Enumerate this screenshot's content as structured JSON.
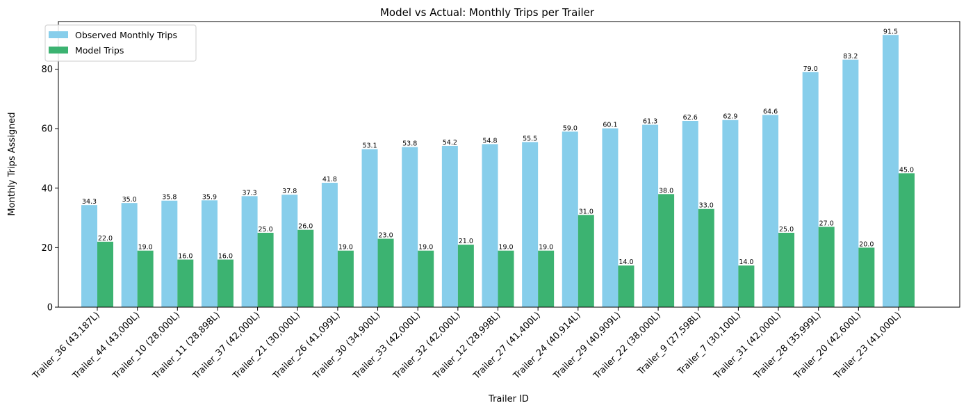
{
  "chart_data": {
    "type": "bar",
    "title": "Model vs Actual: Monthly Trips per Trailer",
    "xlabel": "Trailer ID",
    "ylabel": "Monthly Trips Assigned",
    "ylim": [
      0,
      96
    ],
    "yticks": [
      0,
      20,
      40,
      60,
      80
    ],
    "grid": false,
    "legend_position": "top-left",
    "categories": [
      "Trailer_36 (43,187L)",
      "Trailer_44 (43,000L)",
      "Trailer_10 (28,000L)",
      "Trailer_11 (28,898L)",
      "Trailer_37 (42,000L)",
      "Trailer_21 (30,000L)",
      "Trailer_26 (41,099L)",
      "Trailer_30 (34,900L)",
      "Trailer_33 (42,000L)",
      "Trailer_32 (42,000L)",
      "Trailer_12 (28,998L)",
      "Trailer_27 (41,400L)",
      "Trailer_24 (40,914L)",
      "Trailer_29 (40,909L)",
      "Trailer_22 (38,000L)",
      "Trailer_9 (27,598L)",
      "Trailer_7 (30,100L)",
      "Trailer_31 (42,000L)",
      "Trailer_28 (35,999L)",
      "Trailer_20 (42,600L)",
      "Trailer_23 (41,000L)"
    ],
    "series": [
      {
        "name": "Observed Monthly Trips",
        "color": "#87CEEB",
        "values": [
          34.3,
          35.0,
          35.8,
          35.9,
          37.3,
          37.8,
          41.8,
          53.1,
          53.8,
          54.2,
          54.8,
          55.5,
          59.0,
          60.1,
          61.3,
          62.6,
          62.9,
          64.6,
          79.0,
          83.2,
          91.5
        ]
      },
      {
        "name": "Model Trips",
        "color": "#3CB371",
        "values": [
          22.0,
          19.0,
          16.0,
          16.0,
          25.0,
          26.0,
          19.0,
          23.0,
          19.0,
          21.0,
          19.0,
          19.0,
          31.0,
          14.0,
          38.0,
          33.0,
          14.0,
          25.0,
          27.0,
          20.0,
          45.0
        ]
      }
    ]
  }
}
